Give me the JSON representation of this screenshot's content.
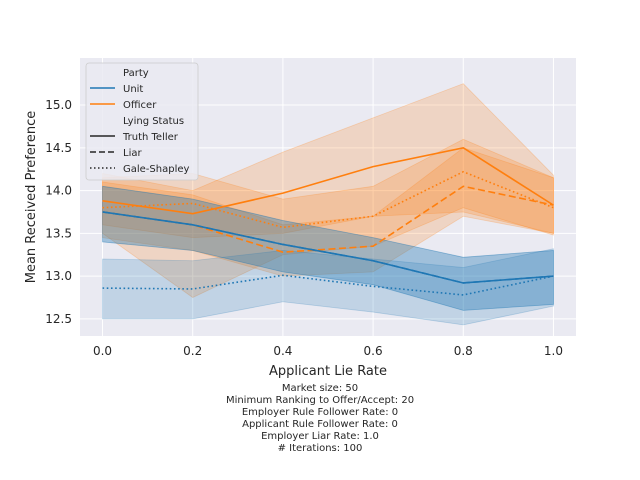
{
  "chart_data": {
    "type": "line",
    "xlabel": "Applicant Lie Rate",
    "ylabel": "Mean Received Preference",
    "x": [
      0.0,
      0.2,
      0.4,
      0.6,
      0.8,
      1.0
    ],
    "x_tick_labels": [
      "0.0",
      "0.2",
      "0.4",
      "0.6",
      "0.8",
      "1.0"
    ],
    "y_ticks": [
      12.5,
      13.0,
      13.5,
      14.0,
      14.5,
      15.0
    ],
    "y_tick_labels": [
      "12.5",
      "13.0",
      "13.5",
      "14.0",
      "14.5",
      "15.0"
    ],
    "xlim": [
      -0.05,
      1.05
    ],
    "ylim": [
      12.3,
      15.55
    ],
    "grid": true,
    "legend_placement": "top-left",
    "legend": {
      "party_title": "Party",
      "party_entries": [
        {
          "label": "Unit",
          "color": "#1f77b4"
        },
        {
          "label": "Officer",
          "color": "#ff7f0e"
        }
      ],
      "lying_title": "Lying Status",
      "lying_entries": [
        {
          "label": "Truth Teller",
          "style": "solid"
        },
        {
          "label": "Liar",
          "style": "dashed"
        },
        {
          "label": "Gale-Shapley",
          "style": "dotted"
        }
      ]
    },
    "series": [
      {
        "party": "Officer",
        "status": "Truth Teller",
        "color": "#ff7f0e",
        "style": "solid",
        "values": [
          13.88,
          13.73,
          13.97,
          14.28,
          14.5,
          13.83
        ],
        "ci_low": [
          13.6,
          13.45,
          13.5,
          13.7,
          13.75,
          13.5
        ],
        "ci_high": [
          14.2,
          14.0,
          14.45,
          14.85,
          15.25,
          14.18
        ]
      },
      {
        "party": "Officer",
        "status": "Liar",
        "color": "#ff7f0e",
        "style": "dashed",
        "values": [
          13.75,
          13.6,
          13.28,
          13.35,
          14.05,
          13.83
        ],
        "ci_low": [
          13.45,
          13.3,
          13.0,
          13.05,
          13.7,
          13.5
        ],
        "ci_high": [
          14.1,
          13.95,
          13.6,
          13.7,
          14.5,
          14.15
        ]
      },
      {
        "party": "Officer",
        "status": "Gale-Shapley",
        "color": "#ff7f0e",
        "style": "dotted",
        "values": [
          13.8,
          13.85,
          13.57,
          13.7,
          14.22,
          13.8
        ],
        "ci_low": [
          13.5,
          12.75,
          13.25,
          13.35,
          13.8,
          13.48
        ],
        "ci_high": [
          14.15,
          14.2,
          13.9,
          14.05,
          14.6,
          14.15
        ]
      },
      {
        "party": "Unit",
        "status": "Truth Teller",
        "color": "#1f77b4",
        "style": "solid",
        "values": [
          13.75,
          13.6,
          13.37,
          13.18,
          12.92,
          13.0
        ],
        "ci_low": [
          13.4,
          13.3,
          13.05,
          12.9,
          12.6,
          12.67
        ],
        "ci_high": [
          14.05,
          13.9,
          13.65,
          13.45,
          13.22,
          13.3
        ]
      },
      {
        "party": "Unit",
        "status": "Liar",
        "color": "#1f77b4",
        "style": "dashed",
        "values": [
          13.75,
          13.6,
          13.37,
          13.18,
          12.92,
          13.0
        ],
        "ci_low": [
          13.4,
          13.3,
          13.05,
          12.9,
          12.6,
          12.67
        ],
        "ci_high": [
          14.05,
          13.9,
          13.65,
          13.45,
          13.22,
          13.3
        ]
      },
      {
        "party": "Unit",
        "status": "Gale-Shapley",
        "color": "#1f77b4",
        "style": "dotted",
        "values": [
          12.86,
          12.85,
          13.01,
          12.88,
          12.78,
          13.0
        ],
        "ci_low": [
          12.5,
          12.5,
          12.7,
          12.58,
          12.43,
          12.65
        ],
        "ci_high": [
          13.2,
          13.18,
          13.3,
          13.2,
          13.1,
          13.32
        ]
      }
    ]
  },
  "caption": {
    "lines": [
      "Market size: 50",
      "Minimum Ranking to Offer/Accept: 20",
      "Employer Rule Follower Rate: 0",
      "Applicant Rule Follower Rate: 0",
      "Employer Liar Rate: 1.0",
      "# Iterations: 100"
    ]
  },
  "colors": {
    "plot_background": "#eaeaf2",
    "grid": "#ffffff",
    "unit": "#1f77b4",
    "officer": "#ff7f0e"
  }
}
